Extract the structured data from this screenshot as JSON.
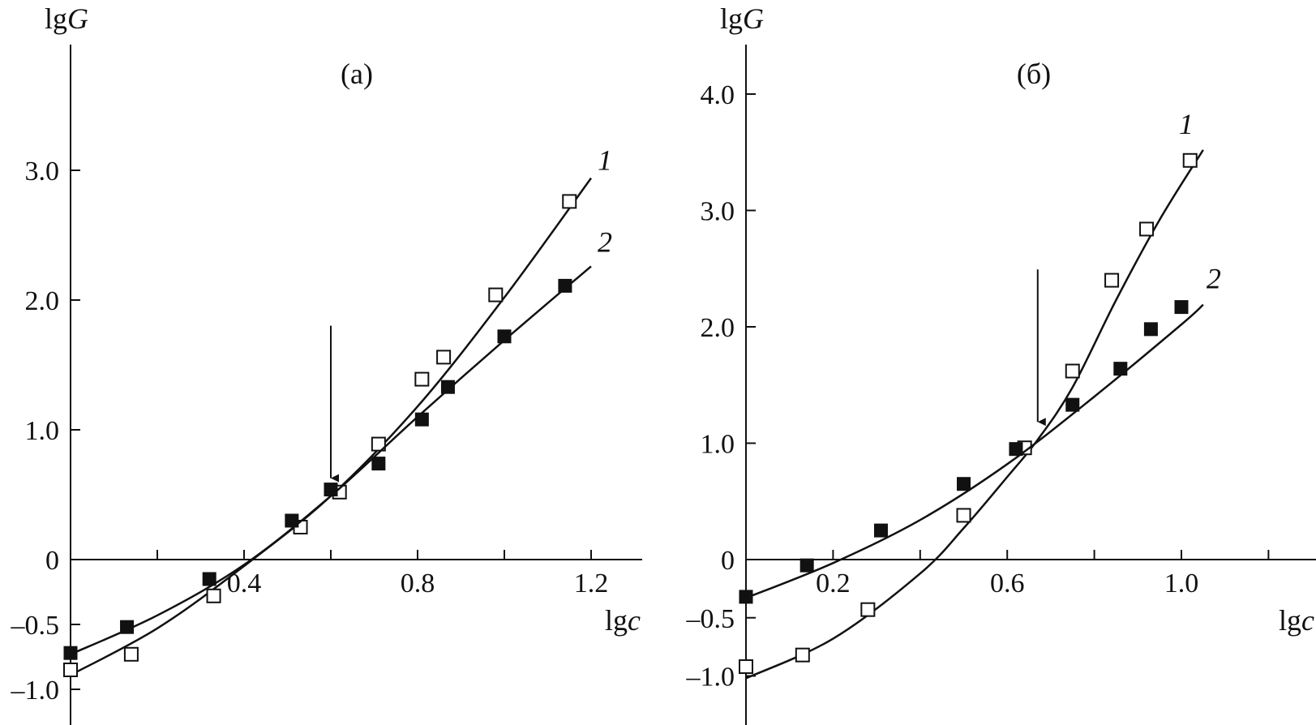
{
  "chart_data": [
    {
      "type": "scatter",
      "panel_label": "(а)",
      "ylabel": "lgG",
      "xlabel": "lgc",
      "xlim": [
        0.0,
        1.32
      ],
      "ylim": [
        -1.25,
        4.05
      ],
      "x_ticks": [
        {
          "value": 0.2,
          "label": ""
        },
        {
          "value": 0.4,
          "label": "0.4"
        },
        {
          "value": 0.6,
          "label": ""
        },
        {
          "value": 0.8,
          "label": "0.8"
        },
        {
          "value": 1.0,
          "label": ""
        },
        {
          "value": 1.2,
          "label": "1.2"
        }
      ],
      "y_ticks": [
        {
          "value": -1.0,
          "label": "–1.0"
        },
        {
          "value": -0.5,
          "label": "–0.5"
        },
        {
          "value": 0.0,
          "label": "0"
        },
        {
          "value": 1.0,
          "label": "1.0"
        },
        {
          "value": 2.0,
          "label": "2.0"
        },
        {
          "value": 3.0,
          "label": "3.0"
        }
      ],
      "arrow_x": 0.6,
      "series": [
        {
          "name": "1",
          "marker": "open-square",
          "x": [
            0.0,
            0.14,
            0.33,
            0.53,
            0.62,
            0.71,
            0.81,
            0.86,
            0.98,
            1.15
          ],
          "y": [
            -0.85,
            -0.73,
            -0.28,
            0.25,
            0.52,
            0.89,
            1.39,
            1.56,
            2.04,
            2.76
          ],
          "curve_x": [
            0.0,
            0.2,
            0.4,
            0.6,
            0.8,
            1.0,
            1.2
          ],
          "curve_y": [
            -0.89,
            -0.53,
            -0.05,
            0.49,
            1.18,
            2.02,
            2.94
          ]
        },
        {
          "name": "2",
          "marker": "filled-square",
          "x": [
            0.0,
            0.13,
            0.32,
            0.51,
            0.6,
            0.71,
            0.81,
            0.87,
            1.0,
            1.14
          ],
          "y": [
            -0.72,
            -0.52,
            -0.15,
            0.3,
            0.54,
            0.74,
            1.08,
            1.33,
            1.72,
            2.11
          ],
          "curve_x": [
            0.0,
            0.2,
            0.4,
            0.6,
            0.8,
            1.0,
            1.2
          ],
          "curve_y": [
            -0.73,
            -0.43,
            -0.04,
            0.49,
            1.1,
            1.69,
            2.26
          ]
        }
      ]
    },
    {
      "type": "scatter",
      "panel_label": "(б)",
      "ylabel": "lgG",
      "xlabel": "lgc",
      "xlim": [
        0.0,
        1.32
      ],
      "ylim": [
        -1.25,
        4.6
      ],
      "x_ticks": [
        {
          "value": 0.2,
          "label": "0.2"
        },
        {
          "value": 0.4,
          "label": ""
        },
        {
          "value": 0.6,
          "label": "0.6"
        },
        {
          "value": 0.8,
          "label": ""
        },
        {
          "value": 1.0,
          "label": "1.0"
        },
        {
          "value": 1.2,
          "label": ""
        }
      ],
      "y_ticks": [
        {
          "value": -1.0,
          "label": "–1.0"
        },
        {
          "value": -0.5,
          "label": "–0.5"
        },
        {
          "value": 0.0,
          "label": "0"
        },
        {
          "value": 1.0,
          "label": "1.0"
        },
        {
          "value": 2.0,
          "label": "2.0"
        },
        {
          "value": 3.0,
          "label": "3.0"
        },
        {
          "value": 4.0,
          "label": "4.0"
        }
      ],
      "arrow_x": 0.67,
      "series": [
        {
          "name": "1",
          "marker": "open-square",
          "x": [
            0.0,
            0.13,
            0.28,
            0.5,
            0.64,
            0.75,
            0.84,
            0.92,
            1.02
          ],
          "y": [
            -0.92,
            -0.82,
            -0.43,
            0.38,
            0.96,
            1.62,
            2.4,
            2.84,
            3.43
          ],
          "curve_x": [
            0.0,
            0.2,
            0.4,
            0.5,
            0.6,
            0.67,
            0.75,
            0.85,
            0.95,
            1.05
          ],
          "curve_y": [
            -1.02,
            -0.68,
            -0.12,
            0.27,
            0.71,
            1.03,
            1.48,
            2.23,
            2.92,
            3.52
          ]
        },
        {
          "name": "2",
          "marker": "filled-square",
          "x": [
            0.0,
            0.14,
            0.31,
            0.5,
            0.62,
            0.75,
            0.86,
            0.93,
            1.0
          ],
          "y": [
            -0.32,
            -0.05,
            0.25,
            0.65,
            0.95,
            1.33,
            1.64,
            1.98,
            2.17
          ],
          "curve_x": [
            0.0,
            0.2,
            0.4,
            0.6,
            0.8,
            1.0,
            1.05
          ],
          "curve_y": [
            -0.33,
            -0.03,
            0.34,
            0.82,
            1.4,
            2.02,
            2.19
          ]
        }
      ]
    }
  ]
}
